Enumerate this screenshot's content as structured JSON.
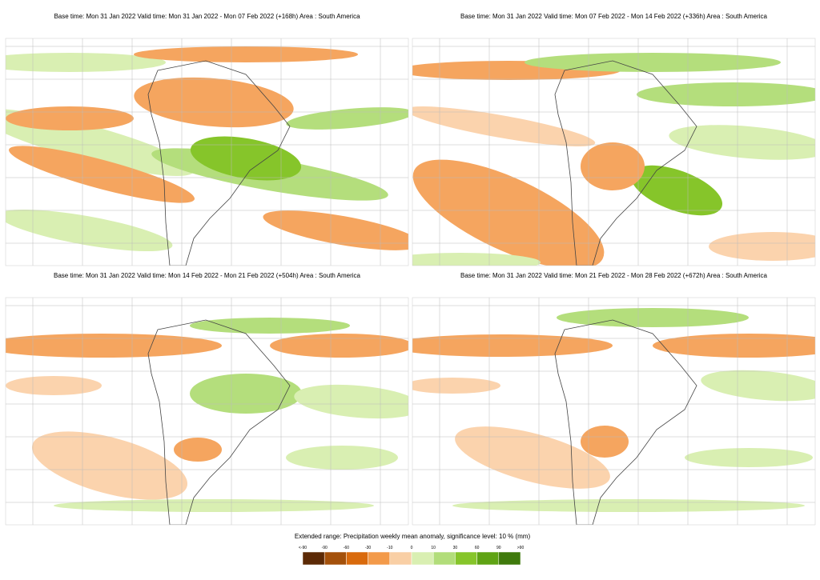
{
  "panels": [
    {
      "title": "Base time: Mon 31 Jan 2022 Valid time: Mon 31 Jan 2022 - Mon 07 Feb 2022 (+168h) Area : South America"
    },
    {
      "title": "Base time: Mon 31 Jan 2022 Valid time: Mon 07 Feb 2022 - Mon 14 Feb 2022 (+336h) Area : South America"
    },
    {
      "title": "Base time: Mon 31 Jan 2022 Valid time: Mon 14 Feb 2022 - Mon 21 Feb 2022 (+504h) Area : South America"
    },
    {
      "title": "Base time: Mon 31 Jan 2022 Valid time: Mon 21 Feb 2022 - Mon 28 Feb 2022 (+672h) Area : South America"
    }
  ],
  "legend": {
    "title": "Extended range: Precipitation weekly mean anomaly, significance level: 10 % (mm)",
    "labels": [
      "<-90",
      "-90",
      "-60",
      "-30",
      "-10",
      "0",
      "10",
      "30",
      "60",
      "90",
      ">90"
    ],
    "colors": [
      "#5c2a06",
      "#a4510b",
      "#d96a0c",
      "#f39a4a",
      "#f9cfa5",
      "#d9efb2",
      "#b2dd7a",
      "#86c52a",
      "#5fa314",
      "#3f7a0c"
    ]
  }
}
